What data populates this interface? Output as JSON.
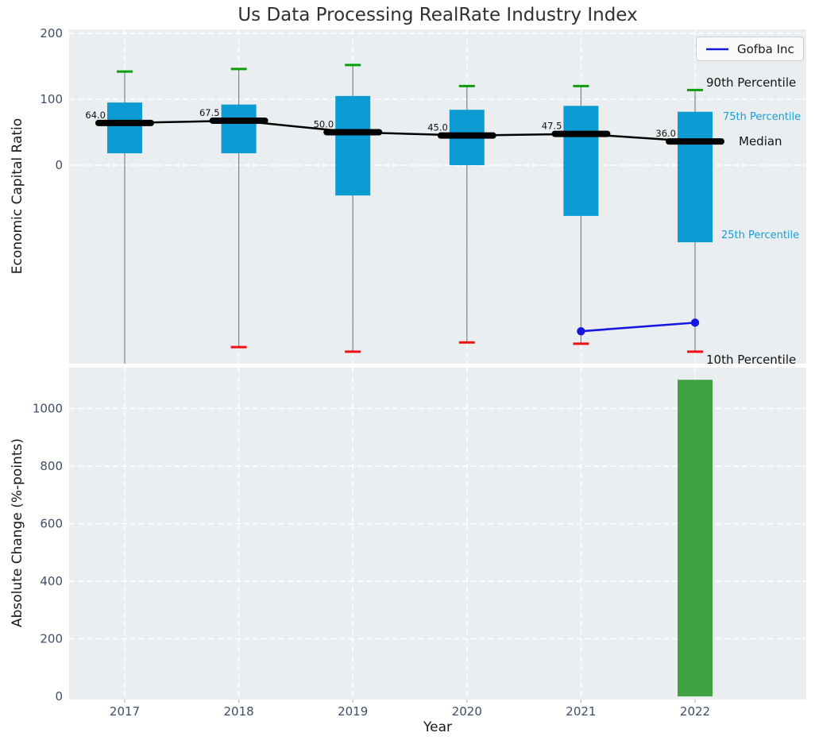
{
  "title": "Us Data Processing RealRate Industry Index",
  "legend": {
    "label": "Gofba Inc"
  },
  "annotations": {
    "p90": "90th Percentile",
    "p75": "75th Percentile",
    "median": "Median",
    "p25": "25th Percentile",
    "p10": "10th Percentile"
  },
  "colors": {
    "plot_bg": "#eaeef0",
    "grid": "#ffffff",
    "box": "#0d9bd3",
    "p90_cap": "#0a9e0a",
    "p10_cap": "#ee1111",
    "whisker": "#808080",
    "median_line": "#000000",
    "gofba_line": "#1717e0",
    "bar": "#3fa344",
    "tick_text": "#3f4e68",
    "median_label_text": "#111111"
  },
  "chart_data": [
    {
      "type": "percentile-box",
      "ylabel": "Economic Capital Ratio",
      "categories": [
        "2017",
        "2018",
        "2019",
        "2020",
        "2021",
        "2022"
      ],
      "yticks": [
        0,
        100,
        200
      ],
      "ylim": [
        -301,
        206
      ],
      "grid": true,
      "series": [
        {
          "name": "90th Percentile",
          "values": [
            142,
            146,
            152,
            120,
            120,
            114
          ]
        },
        {
          "name": "75th Percentile",
          "values": [
            95,
            92,
            105,
            84,
            90,
            81
          ]
        },
        {
          "name": "Median",
          "values": [
            64,
            67.5,
            50,
            45,
            47.5,
            36
          ]
        },
        {
          "name": "25th Percentile",
          "values": [
            18,
            18,
            -46,
            0,
            -77,
            -117
          ]
        },
        {
          "name": "10th Percentile",
          "values": [
            null,
            -276,
            -283,
            -269,
            -271,
            -283
          ]
        }
      ],
      "median_labels": [
        "64.0",
        "67.5",
        "50.0",
        "45.0",
        "47.5",
        "36.0"
      ],
      "overlay_line": {
        "name": "Gofba Inc",
        "categories": [
          "2021",
          "2022"
        ],
        "values": [
          -252,
          -239
        ]
      },
      "legend_position": "upper right"
    },
    {
      "type": "bar",
      "ylabel": "Absolute Change (%-points)",
      "xlabel": "Year",
      "categories": [
        "2017",
        "2018",
        "2019",
        "2020",
        "2021",
        "2022"
      ],
      "values": [
        null,
        null,
        null,
        null,
        null,
        1100
      ],
      "yticks": [
        0,
        200,
        400,
        600,
        800,
        1000
      ],
      "ylim": [
        -11,
        1155
      ],
      "grid": true
    }
  ]
}
